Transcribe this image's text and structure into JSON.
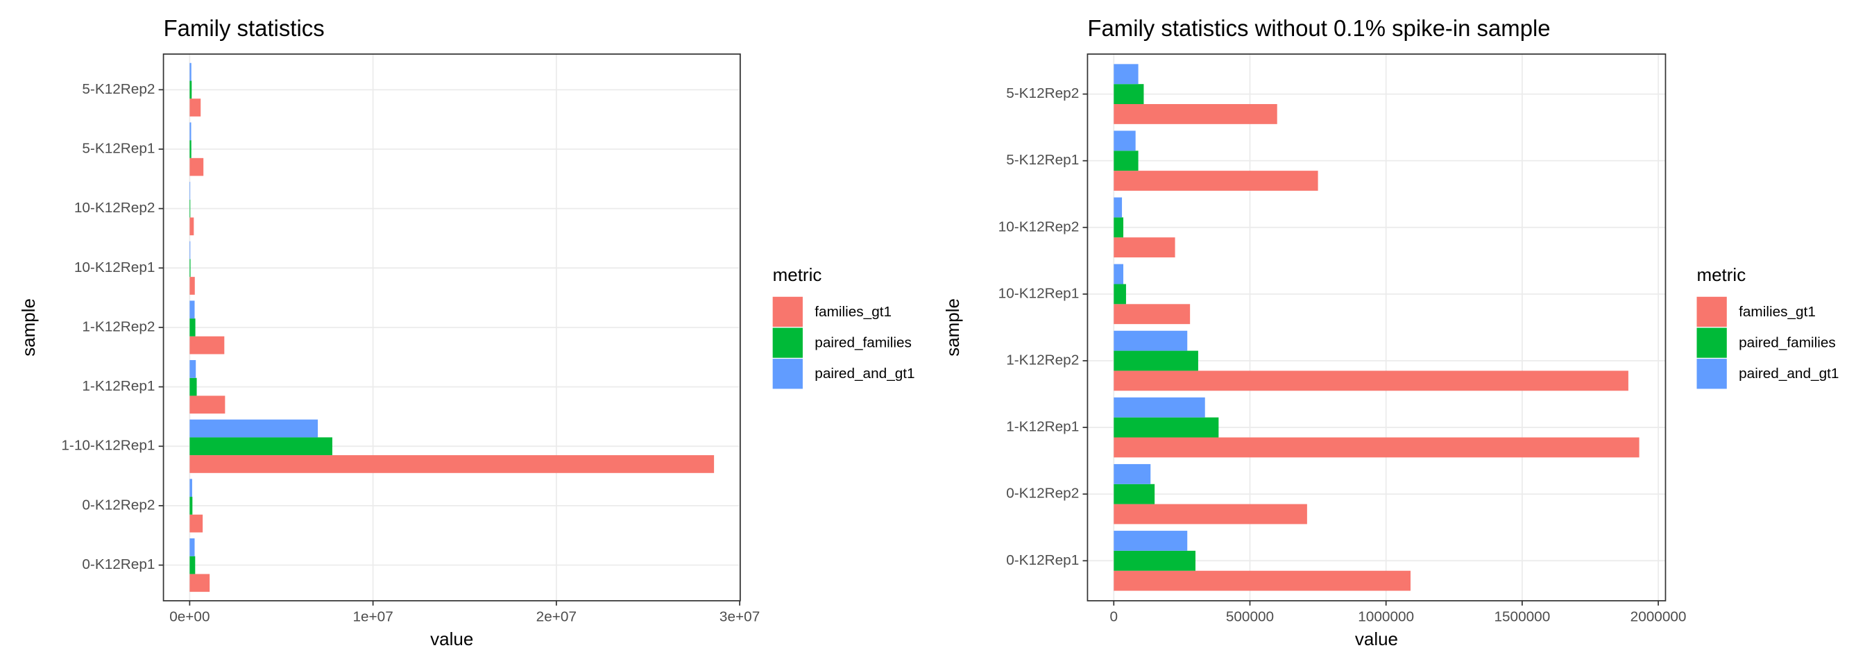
{
  "chart_data": [
    {
      "type": "bar",
      "orientation": "horizontal",
      "title": "Family statistics",
      "x_label": "value",
      "y_label": "sample",
      "legend_title": "metric",
      "legend_position": "right",
      "grid": true,
      "categories": [
        "0-K12Rep1",
        "0-K12Rep2",
        "1-10-K12Rep1",
        "1-K12Rep1",
        "1-K12Rep2",
        "10-K12Rep1",
        "10-K12Rep2",
        "5-K12Rep1",
        "5-K12Rep2"
      ],
      "series": [
        {
          "name": "families_gt1",
          "color": "#F8766D",
          "values": [
            1090000,
            710000,
            28600000,
            1930000,
            1890000,
            280000,
            225000,
            750000,
            600000
          ]
        },
        {
          "name": "paired_families",
          "color": "#00BA38",
          "values": [
            300000,
            150000,
            7780000,
            385000,
            310000,
            45000,
            35000,
            90000,
            110000
          ]
        },
        {
          "name": "paired_and_gt1",
          "color": "#619CFF",
          "values": [
            270000,
            135000,
            6990000,
            335000,
            270000,
            35000,
            30000,
            80000,
            90000
          ]
        }
      ],
      "xlim": [
        -1430000,
        30030000
      ],
      "xticks": [
        {
          "value": 0,
          "label": "0e+00"
        },
        {
          "value": 10000000,
          "label": "1e+07"
        },
        {
          "value": 20000000,
          "label": "2e+07"
        },
        {
          "value": 30000000,
          "label": "3e+07"
        }
      ]
    },
    {
      "type": "bar",
      "orientation": "horizontal",
      "title": "Family statistics without 0.1% spike-in sample",
      "x_label": "value",
      "y_label": "sample",
      "legend_title": "metric",
      "legend_position": "right",
      "grid": true,
      "categories": [
        "0-K12Rep1",
        "0-K12Rep2",
        "1-K12Rep1",
        "1-K12Rep2",
        "10-K12Rep1",
        "10-K12Rep2",
        "5-K12Rep1",
        "5-K12Rep2"
      ],
      "series": [
        {
          "name": "families_gt1",
          "color": "#F8766D",
          "values": [
            1090000,
            710000,
            1930000,
            1890000,
            280000,
            225000,
            750000,
            600000
          ]
        },
        {
          "name": "paired_families",
          "color": "#00BA38",
          "values": [
            300000,
            150000,
            385000,
            310000,
            45000,
            35000,
            90000,
            110000
          ]
        },
        {
          "name": "paired_and_gt1",
          "color": "#619CFF",
          "values": [
            270000,
            135000,
            335000,
            270000,
            35000,
            30000,
            80000,
            90000
          ]
        }
      ],
      "xlim": [
        -96500,
        2026500
      ],
      "xticks": [
        0,
        500000,
        1000000,
        1500000,
        2000000
      ]
    }
  ]
}
